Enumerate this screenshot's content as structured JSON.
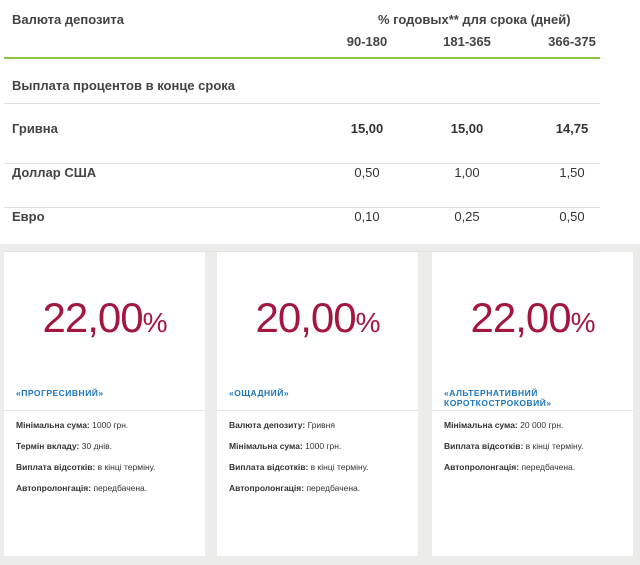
{
  "table": {
    "header": {
      "currency": "Валюта депозита",
      "rate_title": "% годовых** для срока (дней)",
      "columns": [
        "90-180",
        "181-365",
        "366-375"
      ]
    },
    "section": "Выплата процентов в конце срока",
    "rows": [
      {
        "name": "Гривна",
        "values": [
          "15,00",
          "15,00",
          "14,75"
        ],
        "bold": true
      },
      {
        "name": "Доллар США",
        "values": [
          "0,50",
          "1,00",
          "1,50"
        ],
        "bold": false
      },
      {
        "name": "Евро",
        "values": [
          "0,10",
          "0,25",
          "0,50"
        ],
        "bold": false
      }
    ]
  },
  "cards": [
    {
      "rate": "22,00",
      "unit": "%",
      "name": "«ПРОГРЕСИВНИЙ»",
      "details": [
        {
          "label": "Мінімальна сума:",
          "value": "1000 грн."
        },
        {
          "label": "Термін вкладу:",
          "value": "30 днів."
        },
        {
          "label": "Виплата відсотків:",
          "value": "в кінці терміну."
        },
        {
          "label": "Автопролонгація:",
          "value": "передбачена."
        }
      ]
    },
    {
      "rate": "20,00",
      "unit": "%",
      "name": "«ОЩАДНИЙ»",
      "details": [
        {
          "label": "Валюта депозиту:",
          "value": "Гривня"
        },
        {
          "label": "Мінімальна сума:",
          "value": "1000 грн."
        },
        {
          "label": "Виплата відсотків:",
          "value": "в кінці терміну."
        },
        {
          "label": "Автопролонгація:",
          "value": "передбачена."
        }
      ]
    },
    {
      "rate": "22,00",
      "unit": "%",
      "name": "«АЛЬТЕРНАТИВНИЙ КОРОТКОСТРОКОВИЙ»",
      "details": [
        {
          "label": "Мінімальна сума:",
          "value": "20 000 грн."
        },
        {
          "label": "Виплата відсотків:",
          "value": "в кінці терміну."
        },
        {
          "label": "Автопролонгація:",
          "value": "передбачена."
        }
      ]
    }
  ]
}
